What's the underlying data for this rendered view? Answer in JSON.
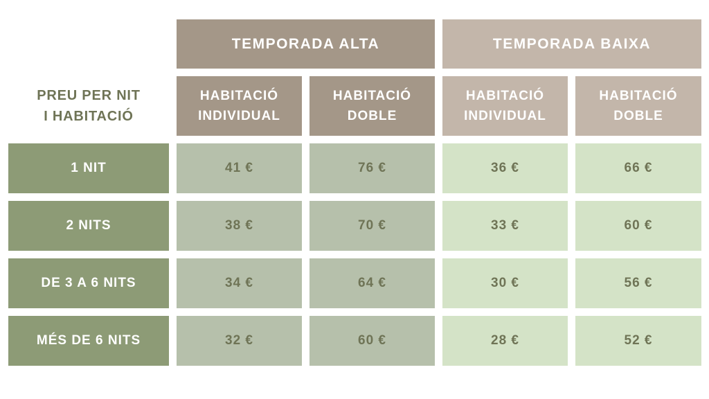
{
  "table": {
    "corner_label": {
      "line1": "PREU PER NIT",
      "line2": "I HABITACIÓ"
    },
    "season_headers": [
      {
        "label": "TEMPORADA ALTA"
      },
      {
        "label": "TEMPORADA BAIXA"
      }
    ],
    "room_headers": [
      {
        "line1": "HABITACIÓ",
        "line2": "INDIVIDUAL",
        "season": "TEMPORADA ALTA"
      },
      {
        "line1": "HABITACIÓ",
        "line2": "DOBLE",
        "season": "TEMPORADA ALTA"
      },
      {
        "line1": "HABITACIÓ",
        "line2": "INDIVIDUAL",
        "season": "TEMPORADA BAIXA"
      },
      {
        "line1": "HABITACIÓ",
        "line2": "DOBLE",
        "season": "TEMPORADA BAIXA"
      }
    ],
    "rows": [
      {
        "label": "1 NIT",
        "values": [
          "41 €",
          "76 €",
          "36 €",
          "66 €"
        ]
      },
      {
        "label": "2 NITS",
        "values": [
          "38 €",
          "70 €",
          "33 €",
          "60 €"
        ]
      },
      {
        "label": "DE 3 A 6 NITS",
        "values": [
          "34 €",
          "64 €",
          "30 €",
          "56 €"
        ]
      },
      {
        "label": "MÉS DE 6 NITS",
        "values": [
          "32 €",
          "60 €",
          "28 €",
          "52 €"
        ]
      }
    ]
  },
  "colors": {
    "alta_taupe": "#a49788",
    "baixa_taupe": "#c3b6aa",
    "row_green": "#8d9b76",
    "alta_cell_sage": "#b6c0ab",
    "baixa_cell_green": "#d4e3c7",
    "olive_text": "#6f7456",
    "header_text": "#ffffff",
    "page_background": "#ffffff"
  },
  "chart_data": {
    "type": "table",
    "title": "PREU PER NIT I HABITACIÓ",
    "unit": "€",
    "column_groups": [
      "TEMPORADA ALTA",
      "TEMPORADA BAIXA"
    ],
    "categories": [
      "1 NIT",
      "2 NITS",
      "DE 3 A 6 NITS",
      "MÉS DE 6 NITS"
    ],
    "series": [
      {
        "name": "TEMPORADA ALTA — HABITACIÓ INDIVIDUAL",
        "values": [
          41,
          38,
          34,
          32
        ]
      },
      {
        "name": "TEMPORADA ALTA — HABITACIÓ DOBLE",
        "values": [
          76,
          70,
          64,
          60
        ]
      },
      {
        "name": "TEMPORADA BAIXA — HABITACIÓ INDIVIDUAL",
        "values": [
          36,
          33,
          30,
          28
        ]
      },
      {
        "name": "TEMPORADA BAIXA — HABITACIÓ DOBLE",
        "values": [
          66,
          60,
          56,
          52
        ]
      }
    ]
  }
}
